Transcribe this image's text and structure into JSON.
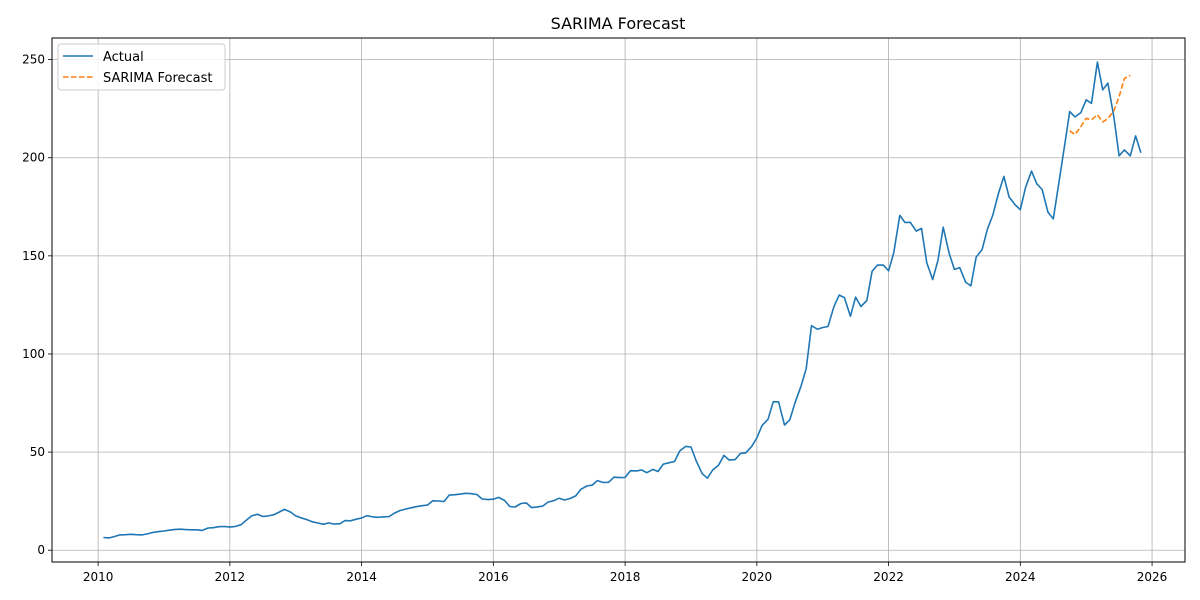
{
  "chart_data": {
    "type": "line",
    "title": "SARIMA Forecast",
    "xlabel": "",
    "ylabel": "",
    "xlim": [
      2009.3,
      2026.5
    ],
    "ylim": [
      -6,
      261
    ],
    "x_ticks": [
      2010,
      2012,
      2014,
      2016,
      2018,
      2020,
      2022,
      2024,
      2026
    ],
    "y_ticks": [
      0,
      50,
      100,
      150,
      200,
      250
    ],
    "grid": true,
    "legend_position": "top-left",
    "series": [
      {
        "name": "Actual",
        "color": "#1f77b4",
        "style": "solid",
        "points": [
          [
            2010.08,
            6.5
          ],
          [
            2010.17,
            6.3
          ],
          [
            2010.25,
            7
          ],
          [
            2010.33,
            7.8
          ],
          [
            2010.42,
            7.9
          ],
          [
            2010.5,
            8.1
          ],
          [
            2010.58,
            7.9
          ],
          [
            2010.67,
            7.8
          ],
          [
            2010.75,
            8.3
          ],
          [
            2010.83,
            9.1
          ],
          [
            2010.92,
            9.5
          ],
          [
            2011.0,
            9.8
          ],
          [
            2011.08,
            10.2
          ],
          [
            2011.17,
            10.6
          ],
          [
            2011.25,
            10.7
          ],
          [
            2011.33,
            10.5
          ],
          [
            2011.42,
            10.4
          ],
          [
            2011.5,
            10.4
          ],
          [
            2011.58,
            10.1
          ],
          [
            2011.67,
            11.3
          ],
          [
            2011.75,
            11.5
          ],
          [
            2011.83,
            12.0
          ],
          [
            2011.92,
            12.1
          ],
          [
            2012.0,
            11.8
          ],
          [
            2012.08,
            12.1
          ],
          [
            2012.17,
            13.0
          ],
          [
            2012.25,
            15.3
          ],
          [
            2012.33,
            17.5
          ],
          [
            2012.42,
            18.3
          ],
          [
            2012.5,
            17.2
          ],
          [
            2012.58,
            17.5
          ],
          [
            2012.67,
            18.1
          ],
          [
            2012.75,
            19.5
          ],
          [
            2012.83,
            20.8
          ],
          [
            2012.92,
            19.5
          ],
          [
            2013.0,
            17.5
          ],
          [
            2013.08,
            16.5
          ],
          [
            2013.17,
            15.6
          ],
          [
            2013.25,
            14.5
          ],
          [
            2013.33,
            13.9
          ],
          [
            2013.42,
            13.2
          ],
          [
            2013.5,
            13.9
          ],
          [
            2013.58,
            13.3
          ],
          [
            2013.67,
            13.5
          ],
          [
            2013.75,
            15.1
          ],
          [
            2013.83,
            15.0
          ],
          [
            2013.92,
            15.8
          ],
          [
            2014.0,
            16.4
          ],
          [
            2014.08,
            17.6
          ],
          [
            2014.17,
            17.0
          ],
          [
            2014.25,
            16.8
          ],
          [
            2014.33,
            17.0
          ],
          [
            2014.42,
            17.2
          ],
          [
            2014.5,
            18.9
          ],
          [
            2014.58,
            20.2
          ],
          [
            2014.67,
            21.0
          ],
          [
            2014.75,
            21.6
          ],
          [
            2014.83,
            22.2
          ],
          [
            2014.92,
            22.7
          ],
          [
            2015.0,
            23.0
          ],
          [
            2015.08,
            25.2
          ],
          [
            2015.17,
            25.1
          ],
          [
            2015.25,
            24.8
          ],
          [
            2015.33,
            28.1
          ],
          [
            2015.42,
            28.3
          ],
          [
            2015.5,
            28.6
          ],
          [
            2015.58,
            29.0
          ],
          [
            2015.67,
            28.8
          ],
          [
            2015.75,
            28.4
          ],
          [
            2015.83,
            26.1
          ],
          [
            2015.92,
            25.8
          ],
          [
            2016.0,
            26.0
          ],
          [
            2016.08,
            26.9
          ],
          [
            2016.17,
            25.4
          ],
          [
            2016.25,
            22.3
          ],
          [
            2016.33,
            22.0
          ],
          [
            2016.42,
            23.8
          ],
          [
            2016.5,
            24.1
          ],
          [
            2016.58,
            21.7
          ],
          [
            2016.67,
            22.1
          ],
          [
            2016.75,
            22.5
          ],
          [
            2016.83,
            24.5
          ],
          [
            2016.92,
            25.3
          ],
          [
            2017.0,
            26.5
          ],
          [
            2017.08,
            25.6
          ],
          [
            2017.17,
            26.4
          ],
          [
            2017.25,
            27.7
          ],
          [
            2017.33,
            31.1
          ],
          [
            2017.42,
            32.7
          ],
          [
            2017.5,
            33.2
          ],
          [
            2017.58,
            35.5
          ],
          [
            2017.67,
            34.5
          ],
          [
            2017.75,
            34.6
          ],
          [
            2017.83,
            37.2
          ],
          [
            2017.92,
            37.0
          ],
          [
            2018.0,
            37.1
          ],
          [
            2018.08,
            40.5
          ],
          [
            2018.17,
            40.4
          ],
          [
            2018.25,
            40.9
          ],
          [
            2018.33,
            39.5
          ],
          [
            2018.42,
            41.2
          ],
          [
            2018.5,
            40.1
          ],
          [
            2018.58,
            43.9
          ],
          [
            2018.67,
            44.6
          ],
          [
            2018.75,
            45.2
          ],
          [
            2018.83,
            50.6
          ],
          [
            2018.92,
            52.9
          ],
          [
            2019.0,
            52.6
          ],
          [
            2019.08,
            45.5
          ],
          [
            2019.17,
            39.0
          ],
          [
            2019.25,
            36.7
          ],
          [
            2019.33,
            40.9
          ],
          [
            2019.42,
            43.4
          ],
          [
            2019.5,
            48.3
          ],
          [
            2019.58,
            45.9
          ],
          [
            2019.67,
            46.2
          ],
          [
            2019.75,
            49.3
          ],
          [
            2019.83,
            49.6
          ],
          [
            2019.92,
            52.8
          ],
          [
            2020.0,
            57.2
          ],
          [
            2020.08,
            63.6
          ],
          [
            2020.17,
            66.7
          ],
          [
            2020.25,
            75.7
          ],
          [
            2020.33,
            75.6
          ],
          [
            2020.42,
            63.8
          ],
          [
            2020.5,
            66.4
          ],
          [
            2020.58,
            75.1
          ],
          [
            2020.67,
            83.6
          ],
          [
            2020.75,
            92.5
          ],
          [
            2020.83,
            114.4
          ],
          [
            2020.92,
            112.6
          ],
          [
            2021.0,
            113.5
          ],
          [
            2021.08,
            114.0
          ],
          [
            2021.17,
            124.1
          ],
          [
            2021.25,
            130.0
          ],
          [
            2021.33,
            128.7
          ],
          [
            2021.42,
            119.2
          ],
          [
            2021.5,
            129.0
          ],
          [
            2021.58,
            124.2
          ],
          [
            2021.67,
            127.2
          ],
          [
            2021.75,
            142.1
          ],
          [
            2021.83,
            145.3
          ],
          [
            2021.92,
            145.3
          ],
          [
            2022.0,
            142.4
          ],
          [
            2022.08,
            151.7
          ],
          [
            2022.17,
            170.6
          ],
          [
            2022.25,
            167.0
          ],
          [
            2022.33,
            167.1
          ],
          [
            2022.42,
            162.6
          ],
          [
            2022.5,
            164.0
          ],
          [
            2022.58,
            146.4
          ],
          [
            2022.67,
            137.9
          ],
          [
            2022.75,
            147.8
          ],
          [
            2022.83,
            164.6
          ],
          [
            2022.92,
            151.2
          ],
          [
            2023.0,
            143.1
          ],
          [
            2023.08,
            144.0
          ],
          [
            2023.17,
            136.6
          ],
          [
            2023.25,
            134.7
          ],
          [
            2023.33,
            149.4
          ],
          [
            2023.42,
            153.2
          ],
          [
            2023.5,
            163.6
          ],
          [
            2023.58,
            170.6
          ],
          [
            2023.67,
            182.0
          ],
          [
            2023.75,
            190.5
          ],
          [
            2023.83,
            180.0
          ],
          [
            2023.92,
            176.0
          ],
          [
            2024.0,
            173.5
          ],
          [
            2024.08,
            184.9
          ],
          [
            2024.17,
            193.2
          ],
          [
            2024.25,
            186.7
          ],
          [
            2024.33,
            183.8
          ],
          [
            2024.42,
            172.2
          ],
          [
            2024.5,
            168.8
          ],
          [
            2024.58,
            186.0
          ],
          [
            2024.67,
            205.9
          ],
          [
            2024.75,
            223.5
          ],
          [
            2024.83,
            220.8
          ],
          [
            2024.92,
            223.0
          ],
          [
            2025.0,
            229.5
          ],
          [
            2025.08,
            227.7
          ],
          [
            2025.17,
            248.7
          ],
          [
            2025.25,
            234.6
          ],
          [
            2025.33,
            238.0
          ],
          [
            2025.42,
            220.6
          ],
          [
            2025.5,
            201.0
          ],
          [
            2025.58,
            204.0
          ],
          [
            2025.67,
            201.0
          ],
          [
            2025.75,
            211.1
          ],
          [
            2025.83,
            202.5
          ]
        ]
      },
      {
        "name": "SARIMA Forecast",
        "color": "#ff7f0e",
        "style": "dashed",
        "points": [
          [
            2024.75,
            213.7
          ],
          [
            2024.83,
            211.8
          ],
          [
            2024.92,
            215.9
          ],
          [
            2025.0,
            220.1
          ],
          [
            2025.08,
            219.3
          ],
          [
            2025.17,
            221.9
          ],
          [
            2025.25,
            218.2
          ],
          [
            2025.33,
            220.0
          ],
          [
            2025.42,
            224.0
          ],
          [
            2025.5,
            231.1
          ],
          [
            2025.58,
            240.4
          ],
          [
            2025.67,
            242.0
          ]
        ]
      }
    ]
  }
}
